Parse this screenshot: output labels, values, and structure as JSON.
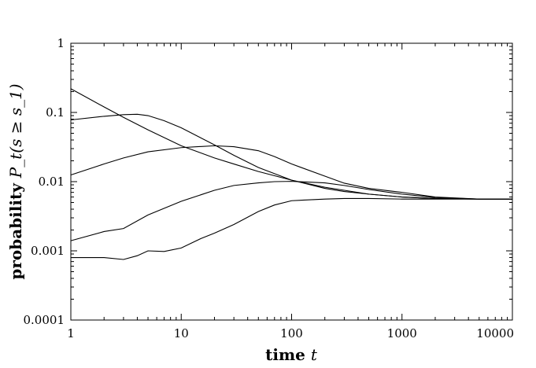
{
  "chart_data": {
    "type": "line",
    "xscale": "log",
    "yscale": "log",
    "xlim": [
      1,
      10000
    ],
    "ylim": [
      0.0001,
      1
    ],
    "xlabel": "time t",
    "ylabel": "probability P_t(s ≥ s_1)",
    "xticks": [
      {
        "value": 1,
        "label": "1"
      },
      {
        "value": 10,
        "label": "10"
      },
      {
        "value": 100,
        "label": "100"
      },
      {
        "value": 1000,
        "label": "1000"
      },
      {
        "value": 10000,
        "label": "10000"
      }
    ],
    "yticks": [
      {
        "value": 0.0001,
        "label": "0.0001"
      },
      {
        "value": 0.001,
        "label": "0.001"
      },
      {
        "value": 0.01,
        "label": "0.01"
      },
      {
        "value": 0.1,
        "label": "0.1"
      },
      {
        "value": 1,
        "label": "1"
      }
    ],
    "grid": false,
    "legend": "none",
    "series": [
      {
        "x": [
          1,
          2,
          3,
          5,
          10,
          20,
          30,
          50,
          100,
          200,
          300,
          500,
          1000,
          2000,
          5000,
          10000
        ],
        "y": [
          0.22,
          0.12,
          0.085,
          0.056,
          0.033,
          0.022,
          0.018,
          0.014,
          0.0105,
          0.008,
          0.0072,
          0.0066,
          0.006,
          0.0057,
          0.0056,
          0.0056
        ]
      },
      {
        "x": [
          1,
          2,
          3,
          4,
          5,
          7,
          10,
          20,
          30,
          50,
          100,
          200,
          500,
          1000,
          2000,
          5000,
          10000
        ],
        "y": [
          0.078,
          0.088,
          0.093,
          0.094,
          0.09,
          0.076,
          0.06,
          0.034,
          0.024,
          0.016,
          0.0105,
          0.0083,
          0.0066,
          0.006,
          0.0057,
          0.0056,
          0.0056
        ]
      },
      {
        "x": [
          1,
          2,
          3,
          5,
          10,
          20,
          30,
          50,
          70,
          100,
          200,
          300,
          500,
          1000,
          2000,
          5000,
          10000
        ],
        "y": [
          0.0125,
          0.018,
          0.022,
          0.027,
          0.031,
          0.033,
          0.032,
          0.028,
          0.023,
          0.018,
          0.012,
          0.0095,
          0.008,
          0.007,
          0.006,
          0.0056,
          0.0056
        ]
      },
      {
        "x": [
          1,
          2,
          3,
          5,
          10,
          20,
          30,
          50,
          70,
          100,
          200,
          300,
          500,
          1000,
          2000,
          5000,
          10000
        ],
        "y": [
          0.0014,
          0.0019,
          0.0021,
          0.0033,
          0.0052,
          0.0075,
          0.0088,
          0.0096,
          0.01,
          0.0101,
          0.0096,
          0.0088,
          0.0077,
          0.0066,
          0.0059,
          0.0056,
          0.0056
        ]
      },
      {
        "x": [
          1,
          2,
          3,
          4,
          5,
          7,
          10,
          15,
          20,
          30,
          50,
          70,
          100,
          200,
          300,
          500,
          1000,
          2000,
          5000,
          10000
        ],
        "y": [
          0.0008,
          0.0008,
          0.00075,
          0.00085,
          0.001,
          0.00098,
          0.0011,
          0.0015,
          0.0018,
          0.0024,
          0.0037,
          0.0046,
          0.0053,
          0.0056,
          0.0057,
          0.0057,
          0.0056,
          0.0056,
          0.0056,
          0.0056
        ]
      }
    ]
  }
}
